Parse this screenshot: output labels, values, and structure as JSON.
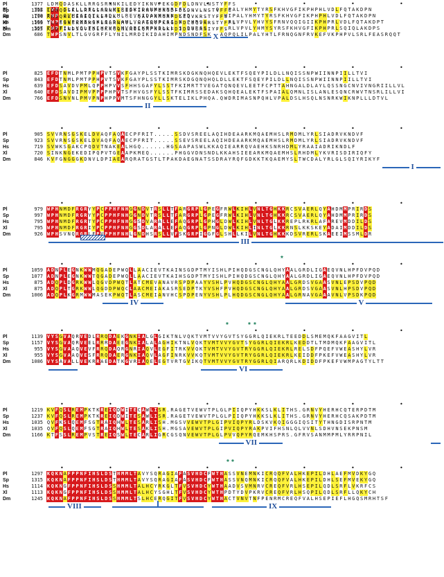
{
  "species": [
    "Pl",
    "Sp",
    "Hs",
    "Xl",
    "Dm"
  ],
  "blocks": [
    {
      "starts": [
        "752",
        "770",
        "566",
        "567",
        "686"
      ],
      "seqs": [
        "TWPTGLILLDTLLADLMLREIKIDANMHNNRLFK.......QWIPALYHMYTYRSFKHVGFIKPHPHLVDLFQTAKDPN",
        "TWPTGVMIGIGTLLADLMLREVKIDANMHNNRKFD.......QWIPALYHMYTYRSFKHVGFIKPHPHLVDLFQTAKDPN",
        "YWPFGVPQMBLGKLIADLAMLVQATQMPCSIDNDPHRSS.....RLVPVLYHVYSFRNVQQIGIIKPHPRLVDLFQTAKDPT",
        "TWPTILLVQLTKEHFVPLMVQBIKTPNDLLLDSTDNRSS.....RLVPVLYHMYSYRSFKHVGFIKPHPRLSQIQLAKDPS",
        "TWPSNVLTLGVGRFFLYNILMRDIKIDAHIMPNDSNDFSKAAAQPQLILPALYHTLFRNQGNFRVKEFVKPHPVLSRLFEASRQQT"
      ],
      "star": null
    },
    {
      "starts": [
        "825",
        "843",
        "639",
        "640",
        "766"
      ],
      "seqs": [
        "EFDTNMLPMTPPHPVTSVKFGAYPLSSTKIMRSKDGKNQHQEVLEKTFSQEYPILDLLNQISSNPWIINNPIILLTVI",
        "EFDTNMLPMTPPHPVTSVKFGAYPLSSTKIMRSKDGQNQHQLDLLEKTFSQEYPILDLLNQISSNPWIINNPIILLTVI",
        "EFDSAVDVPMLQPPHPVVSFHHSGAFYLSSTFKIMRTTVEGATQNQEVLEETFCPTTAHNGALDLAYLQSSNGCNVIVNGRIILLVL",
        "EFDSAVDIPMVPPPPHPVTSFHVGSFYLSSTFKIMRSSEDAKSQHQEALEKTFSPAIALQMNLISLANLESQNCRWVTNSRLILLVI",
        "EFDSNVNLPMVPNPHPPVMTSFHNGGYLLSKTELIKLPHQA.QWDRIMASNPQHLVPALDSLHSQLNSNRKWIKNPLLLDTVL"
      ],
      "helices": [
        {
          "label": "II",
          "x1": 128,
          "x2": 298
        }
      ]
    },
    {
      "starts": [
        "905",
        "923",
        "719",
        "720",
        "846"
      ],
      "seqs": [
        "SVVRNSGSKELDVAQFAQAECPFRIT.....SSDVSREELAQIHDEAARKMQAEMHSLRMDMLYRLSIADRVKNDVF",
        "SVVRNSGSKELDVAQFAQAECPFRIT.....SSEVSREELAQIHDEAARKMQAEMHSLRMDMLYRLSIADRVKNDVF",
        "SVWKSGAKCPQDVTNAKEALHGQ......HGSAAPASWLKKAQIEARRQVAEHKSNRHDMLYRAAIADRIKNDLF",
        "SINKNGEKEDIPQPVTGEAAPKMEQ......PHGGVDNSNDLKKAHSIEEARKMQAEMHSLRHDMLYKVRISDIRIQFY",
        "KVFGNGGGKDNVLDPIAEARQRATGSTLTPAKDAEGNATSSDRAYRQFGDKKTKQAEMYSLTWCDALYRLGLSQIYRIKYF"
      ],
      "helices": [
        {
          "label": "I",
          "x1": 552,
          "x2": 636
        }
      ]
    },
    {
      "starts": [
        "979",
        "997",
        "795",
        "795",
        "926"
      ],
      "seqs": [
        "WPHNMDFRGRYYPCPPHFNHGGNDVTRSLLTFARGRPLGPEGFRWLKIHLVNLTGHKKRCSVAERLQYAHDMMPRIRDS",
        "WPHNMDFRGRYYPCPPHFNHGGNDVTRSLLTFARGRPLGPEGFRWLKIHLVNLTGHKKRCSVAERLQYAHDMMPRIRDS",
        "WPHNMDFRGRTYPCPPHFNHGGSDVARALLEFAQGRPLGPHGLDWLKIHLVNLTGLKKREPLRKRLAFAREVMDDILDS",
        "WPHNMDFRGRIYPCPPHFNHGGSDLARALLEFAQGRPLGPNGLDWLKIHLINLTGLKKRNSLKKSKEYADAIMDDILDS",
        "WPHSVNQRGRLFPVPPHFNHLGNDHSRSLLVFSKGRPIGGFGLSHLLKILVNLTGHKKKDSVRERLSKAEEIMSSMLDR"
      ],
      "helices": [
        {
          "label": "III",
          "x1": 70,
          "x2": 640
        }
      ],
      "hatch": {
        "x1": 116,
        "x2": 150
      }
    },
    {
      "starts": [
        "1059",
        "1077",
        "875",
        "875",
        "1006"
      ],
      "seqs": [
        "ADNPLEGNKWWMQGADEPWQLLAACIEVTKAINSGDPTMYISHLPIHQDGSCNGLQHYAALGRDLIGAEQVNLHPFDVPQD",
        "ADNPLEGNKWWTQGADEPWQLLAACIEVTKAIHSGDPTMYISHLPIHQDGSCNGLQHYAALGRDLIGAEQVNLHPFDVPQD",
        "ADQPLDGRKWWLQGVDPWQTLATCMEVANAVRSPDPAAYVSHLPVHQDGSCNGLQHYAALGRDSVGAASVNLEPSDVPQD",
        "ADQPLTGRKWWLQGDDPWQCLAACMEIAKASRSEDPTKYVSHFPVHQDGSCNGLQHYAALGRDSVGAASVNLHPSDVPQD",
        "ADQPLKGRMWWMASEKPWQTLASCMEIANVHCSPDPENYVSHLPLHQDGSCNGLQHYAALGRNAVGAAAVNLVPSDKPQD"
      ],
      "star": {
        "x": 405
      },
      "helices": [
        {
          "label": "IV",
          "x1": 148,
          "x2": 236
        },
        {
          "label": "V",
          "x1": 412,
          "x2": 624
        }
      ]
    },
    {
      "starts": [
        "1139",
        "1157",
        "955",
        "955",
        "1086"
      ],
      "seqs": [
        "VYSGVAQRVEDLRRQDAEKGNKIALGLGIKTNLVQKTVMTVVYGVTSYGGRLQIEKRLTEEDDLSMEMQKFAAGVITL",
        "VYSGVAQRVEELRRRDAEEGNKIALALAGHIKTNLVQKTVMTVVYGVTSYGGRLQIEKRLKEDDTLTMDMQKFAAGVITL",
        "VYSGVAAQVEVFRRQDAQRGNRIAQVLEGFITRKVVQKTVMTVVYGVTRYGGRLQIEKRLRELSDFPQEFVWEASHYLVR",
        "VYSGVAAQVESFRRQDAERGNKIAQVLAGFINRKVVKQTVMTVVYGVTRYGGRLQIEKRLKEIDDFPKEFVWEASHYLVR",
        "VYSAVALLVEKRRAEDATKGVRIAQELEGTVRTGVIKQTVMTVVYGVTRYGGRLQIARQRLKDIDDFPKEFVWMPAGTYLTT"
      ],
      "stars": [
        {
          "x": 326
        },
        {
          "x": 358
        },
        {
          "x": 366
        }
      ],
      "helices": [
        {
          "label": "VI",
          "x1": 290,
          "x2": 408
        },
        {
          "label": "_",
          "x1": 70,
          "x2": 112
        }
      ]
    },
    {
      "starts": [
        "1219",
        "1237",
        "1035",
        "1035",
        "1166"
      ],
      "seqs": [
        "KVFQSLREMPKTKREIQDWITECAWLISR.RAGETVEWVTPLGLPIIQPYHKKSLKLITHS.GRNVYHERHCQTERPDTM",
        "KVFQSLREMPKTKREIQDWITESAWLISR.RAGETVEWVTPLGLPIIQPYHKKSLKLITHS.GRNVYHERHCQSAKPDTM",
        "QVFKSLQEMFSGTRAIQHWLTESARLISH.MGSVVEWVTPLGIPVIQPYRLDSKVKQIGGGIQSITYTHNGDISRPNTM",
        "QVFQSLQEMFSGTRAIQHWLTESAKLISH.MGSAVEWVTPLGIPVIQPYRAKPVIFHSNLQLVVNLSDHVNSEKPNSM",
        "KTFSSLREMPVSTREIQSWLTECARLIGRCGSQNVEWVTPLGLPVVQPYRQEMKHSPRS.GFRVSANMMPMLYRRPNIL"
      ],
      "helices": [
        {
          "label": "VII",
          "x1": 316,
          "x2": 408
        },
        {
          "label": "_",
          "x1": 622,
          "x2": 636
        }
      ]
    },
    {
      "starts": [
        "1297",
        "1315",
        "1114",
        "1113",
        "1245"
      ],
      "seqs": [
        "KQKNAFPPNFIHSLDSTHMMLTAVYSQRAGIAFASVHDCFWTHASSVNEMNKICRQQFVALHKEPILDHLAEFMVDKYGQ",
        "KQKNAFPPNFIHSLDSTHMMLTAVYSQRAGIAFASVHDCFWTHASSVNQMNKICRQQFVALHKEPILDHLSEFMVEKYGQ",
        "KQKNGFPPNFIHSLDSSHMMLTALHCYRKGLTFVSVHDCYWTHAADVSVMNRVCREQFVRLHSEPILQDLSRFLVKRFCS",
        "KQKNGFPPNFIHSLDSSHMMLTALHCYSGHLTFVSVHDCYWTHPDTYDVPKRVCREQFVRLHSQPILQDLSRFLLQKYCH",
        "KQKNAFPPNFIHSLDSSHMMLTSLHCERQGITFVSVHDCYWTHACTVNVTNFPENRMCREQFVALHSEPIEFLHGQSMRHTSF"
      ],
      "stars": [
        {
          "x": 327
        },
        {
          "x": 334
        }
      ],
      "helices": [
        {
          "label": "VIII",
          "x1": 70,
          "x2": 146
        },
        {
          "label": "_",
          "x1": 162,
          "x2": 294
        },
        {
          "label": "IX",
          "x1": 306,
          "x2": 478
        }
      ],
      "tick": {
        "x": 227
      }
    },
    {
      "starts": [
        "1377",
        "1395",
        "1194",
        "1193",
        "1325"
      ],
      "seqs": [
        "LDMQDASKLLRRGSRNNKILEDYIKNVPEKGDFDLDNVLNSTYFFS",
        "LDMQDSKLLRRGSRNNKILEDYIKNVPEKGDFDLDNVLNSTYFFS",
        "RKIQKLLEAEQLKETLK.....QAVPKRGAFDLEQVKRSTYFFS",
        "TLLSSNSKAAMSPENLRNMVL.HFGNVPKRGDFDLEQVKRSTYFFS",
        "KSDFINDSGVEDLGKRGQNLRILQMPKRGKFDIDSVLRSIYFFS"
      ],
      "star": {
        "x": 374
      },
      "helices": [
        {
          "label": "X",
          "x1": 258,
          "x2": 358
        }
      ]
    }
  ],
  "helix_labels": [
    "II",
    "I",
    "III",
    "IV",
    "V",
    "VI",
    "VII",
    "VIII",
    "IX",
    "X"
  ]
}
